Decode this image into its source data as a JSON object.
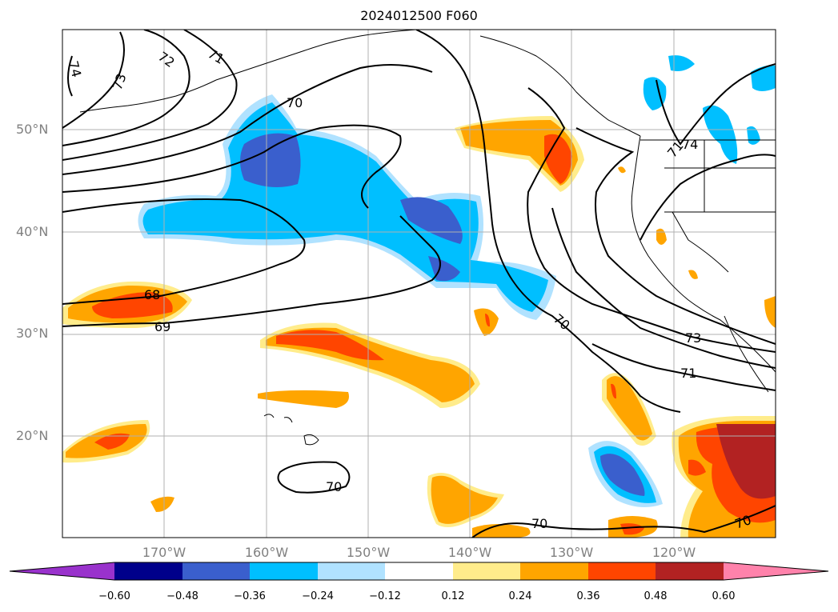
{
  "title": "2024012500 F060",
  "lat_labels": [
    "50°N",
    "40°N",
    "30°N",
    "20°N"
  ],
  "lon_labels": [
    "170°W",
    "160°W",
    "150°W",
    "140°W",
    "130°W",
    "120°W"
  ],
  "contour_labels": [
    "74",
    "73",
    "72",
    "71",
    "70",
    "70",
    "70",
    "70",
    "70",
    "68",
    "69",
    "73",
    "71",
    "71",
    "74"
  ],
  "colorbar": {
    "ticks": [
      "−0.60",
      "−0.48",
      "−0.36",
      "−0.24",
      "−0.12",
      "0.12",
      "0.24",
      "0.36",
      "0.48",
      "0.60"
    ],
    "colors": [
      "#9932cc",
      "#00008b",
      "#3a5fcd",
      "#00bfff",
      "#b0e2ff",
      "#ffffff",
      "#ffec8b",
      "#ffa500",
      "#ff4500",
      "#b22222",
      "#ff82ab"
    ]
  }
}
